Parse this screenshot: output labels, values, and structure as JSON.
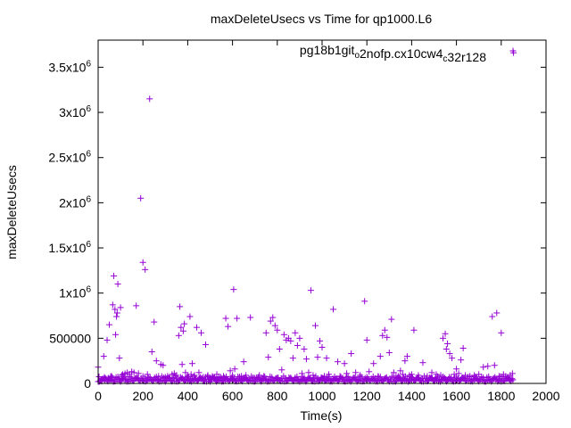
{
  "chart_data": {
    "type": "scatter",
    "title": "maxDeleteUsecs vs Time for qp1000.L6",
    "xlabel": "Time(s)",
    "ylabel": "maxDeleteUsecs",
    "xlim": [
      0,
      2000
    ],
    "ylim": [
      0,
      3800000
    ],
    "x_ticks": [
      0,
      200,
      400,
      600,
      800,
      1000,
      1200,
      1400,
      1600,
      1800,
      2000
    ],
    "x_tick_labels": [
      "0",
      "200",
      "400",
      "600",
      "800",
      "1000",
      "1200",
      "1400",
      "1600",
      "1800",
      "2000"
    ],
    "y_ticks": [
      {
        "value": 0,
        "base": "0",
        "exp": ""
      },
      {
        "value": 500000,
        "base": "500000",
        "exp": ""
      },
      {
        "value": 1000000,
        "base": "1x10",
        "exp": "6"
      },
      {
        "value": 1500000,
        "base": "1.5x10",
        "exp": "6"
      },
      {
        "value": 2000000,
        "base": "2x10",
        "exp": "6"
      },
      {
        "value": 2500000,
        "base": "2.5x10",
        "exp": "6"
      },
      {
        "value": 3000000,
        "base": "3x10",
        "exp": "6"
      },
      {
        "value": 3500000,
        "base": "3.5x10",
        "exp": "6"
      }
    ],
    "grid": false,
    "legend_position": "top-right",
    "legend_label_parts": [
      {
        "text": "pg18b1git",
        "style": "normal"
      },
      {
        "text": "o",
        "style": "sub"
      },
      {
        "text": "2nofp.cx10cw4",
        "style": "normal"
      },
      {
        "text": "c",
        "style": "sub"
      },
      {
        "text": "32r128",
        "style": "normal"
      }
    ],
    "marker": "plus",
    "color": "#9400d3",
    "series": [
      {
        "points": [
          [
            0,
            180000
          ],
          [
            5,
            20000
          ],
          [
            15,
            40000
          ],
          [
            25,
            300000
          ],
          [
            30,
            40000
          ],
          [
            40,
            480000
          ],
          [
            45,
            60000
          ],
          [
            50,
            650000
          ],
          [
            60,
            80000
          ],
          [
            65,
            870000
          ],
          [
            70,
            1190000
          ],
          [
            75,
            820000
          ],
          [
            78,
            540000
          ],
          [
            82,
            740000
          ],
          [
            85,
            780000
          ],
          [
            88,
            1100000
          ],
          [
            95,
            280000
          ],
          [
            100,
            840000
          ],
          [
            105,
            90000
          ],
          [
            110,
            100000
          ],
          [
            120,
            110000
          ],
          [
            130,
            120000
          ],
          [
            140,
            100000
          ],
          [
            150,
            130000
          ],
          [
            160,
            120000
          ],
          [
            170,
            860000
          ],
          [
            180,
            110000
          ],
          [
            190,
            2050000
          ],
          [
            200,
            1340000
          ],
          [
            210,
            1260000
          ],
          [
            220,
            100000
          ],
          [
            230,
            3150000
          ],
          [
            240,
            350000
          ],
          [
            250,
            680000
          ],
          [
            260,
            250000
          ],
          [
            270,
            80000
          ],
          [
            280,
            210000
          ],
          [
            290,
            200000
          ],
          [
            300,
            70000
          ],
          [
            310,
            80000
          ],
          [
            320,
            60000
          ],
          [
            330,
            100000
          ],
          [
            340,
            110000
          ],
          [
            350,
            90000
          ],
          [
            360,
            530000
          ],
          [
            365,
            850000
          ],
          [
            370,
            620000
          ],
          [
            375,
            210000
          ],
          [
            380,
            580000
          ],
          [
            385,
            660000
          ],
          [
            390,
            120000
          ],
          [
            400,
            80000
          ],
          [
            410,
            740000
          ],
          [
            415,
            100000
          ],
          [
            420,
            220000
          ],
          [
            430,
            90000
          ],
          [
            440,
            620000
          ],
          [
            450,
            120000
          ],
          [
            460,
            560000
          ],
          [
            470,
            70000
          ],
          [
            480,
            430000
          ],
          [
            490,
            90000
          ],
          [
            500,
            60000
          ],
          [
            510,
            80000
          ],
          [
            520,
            70000
          ],
          [
            530,
            100000
          ],
          [
            540,
            60000
          ],
          [
            560,
            80000
          ],
          [
            570,
            720000
          ],
          [
            580,
            630000
          ],
          [
            590,
            140000
          ],
          [
            600,
            90000
          ],
          [
            605,
            1040000
          ],
          [
            610,
            160000
          ],
          [
            620,
            720000
          ],
          [
            630,
            60000
          ],
          [
            640,
            80000
          ],
          [
            650,
            240000
          ],
          [
            660,
            90000
          ],
          [
            680,
            730000
          ],
          [
            700,
            60000
          ],
          [
            720,
            90000
          ],
          [
            740,
            80000
          ],
          [
            750,
            560000
          ],
          [
            760,
            290000
          ],
          [
            770,
            690000
          ],
          [
            780,
            730000
          ],
          [
            790,
            640000
          ],
          [
            800,
            590000
          ],
          [
            810,
            380000
          ],
          [
            820,
            150000
          ],
          [
            830,
            540000
          ],
          [
            840,
            480000
          ],
          [
            850,
            500000
          ],
          [
            860,
            470000
          ],
          [
            870,
            280000
          ],
          [
            880,
            560000
          ],
          [
            890,
            420000
          ],
          [
            900,
            500000
          ],
          [
            910,
            110000
          ],
          [
            920,
            380000
          ],
          [
            930,
            270000
          ],
          [
            940,
            120000
          ],
          [
            950,
            1030000
          ],
          [
            960,
            90000
          ],
          [
            970,
            640000
          ],
          [
            980,
            290000
          ],
          [
            990,
            470000
          ],
          [
            1000,
            400000
          ],
          [
            1010,
            80000
          ],
          [
            1020,
            280000
          ],
          [
            1030,
            100000
          ],
          [
            1050,
            820000
          ],
          [
            1070,
            240000
          ],
          [
            1080,
            80000
          ],
          [
            1100,
            220000
          ],
          [
            1110,
            110000
          ],
          [
            1130,
            330000
          ],
          [
            1150,
            120000
          ],
          [
            1170,
            90000
          ],
          [
            1190,
            910000
          ],
          [
            1200,
            480000
          ],
          [
            1210,
            130000
          ],
          [
            1230,
            220000
          ],
          [
            1250,
            80000
          ],
          [
            1260,
            300000
          ],
          [
            1270,
            530000
          ],
          [
            1280,
            590000
          ],
          [
            1290,
            510000
          ],
          [
            1300,
            340000
          ],
          [
            1310,
            710000
          ],
          [
            1320,
            120000
          ],
          [
            1330,
            80000
          ],
          [
            1340,
            80000
          ],
          [
            1350,
            140000
          ],
          [
            1360,
            100000
          ],
          [
            1370,
            250000
          ],
          [
            1380,
            300000
          ],
          [
            1390,
            90000
          ],
          [
            1400,
            100000
          ],
          [
            1410,
            590000
          ],
          [
            1430,
            90000
          ],
          [
            1450,
            230000
          ],
          [
            1470,
            80000
          ],
          [
            1490,
            120000
          ],
          [
            1510,
            100000
          ],
          [
            1530,
            90000
          ],
          [
            1540,
            500000
          ],
          [
            1550,
            550000
          ],
          [
            1555,
            380000
          ],
          [
            1560,
            440000
          ],
          [
            1570,
            330000
          ],
          [
            1580,
            280000
          ],
          [
            1590,
            100000
          ],
          [
            1600,
            160000
          ],
          [
            1610,
            110000
          ],
          [
            1620,
            260000
          ],
          [
            1630,
            390000
          ],
          [
            1640,
            90000
          ],
          [
            1660,
            80000
          ],
          [
            1680,
            90000
          ],
          [
            1700,
            100000
          ],
          [
            1720,
            180000
          ],
          [
            1740,
            190000
          ],
          [
            1760,
            740000
          ],
          [
            1770,
            200000
          ],
          [
            1780,
            780000
          ],
          [
            1790,
            80000
          ],
          [
            1800,
            560000
          ],
          [
            1810,
            100000
          ],
          [
            1820,
            80000
          ],
          [
            1830,
            70000
          ],
          [
            1840,
            90000
          ],
          [
            1850,
            110000
          ],
          [
            1855,
            3660000
          ]
        ]
      }
    ]
  }
}
